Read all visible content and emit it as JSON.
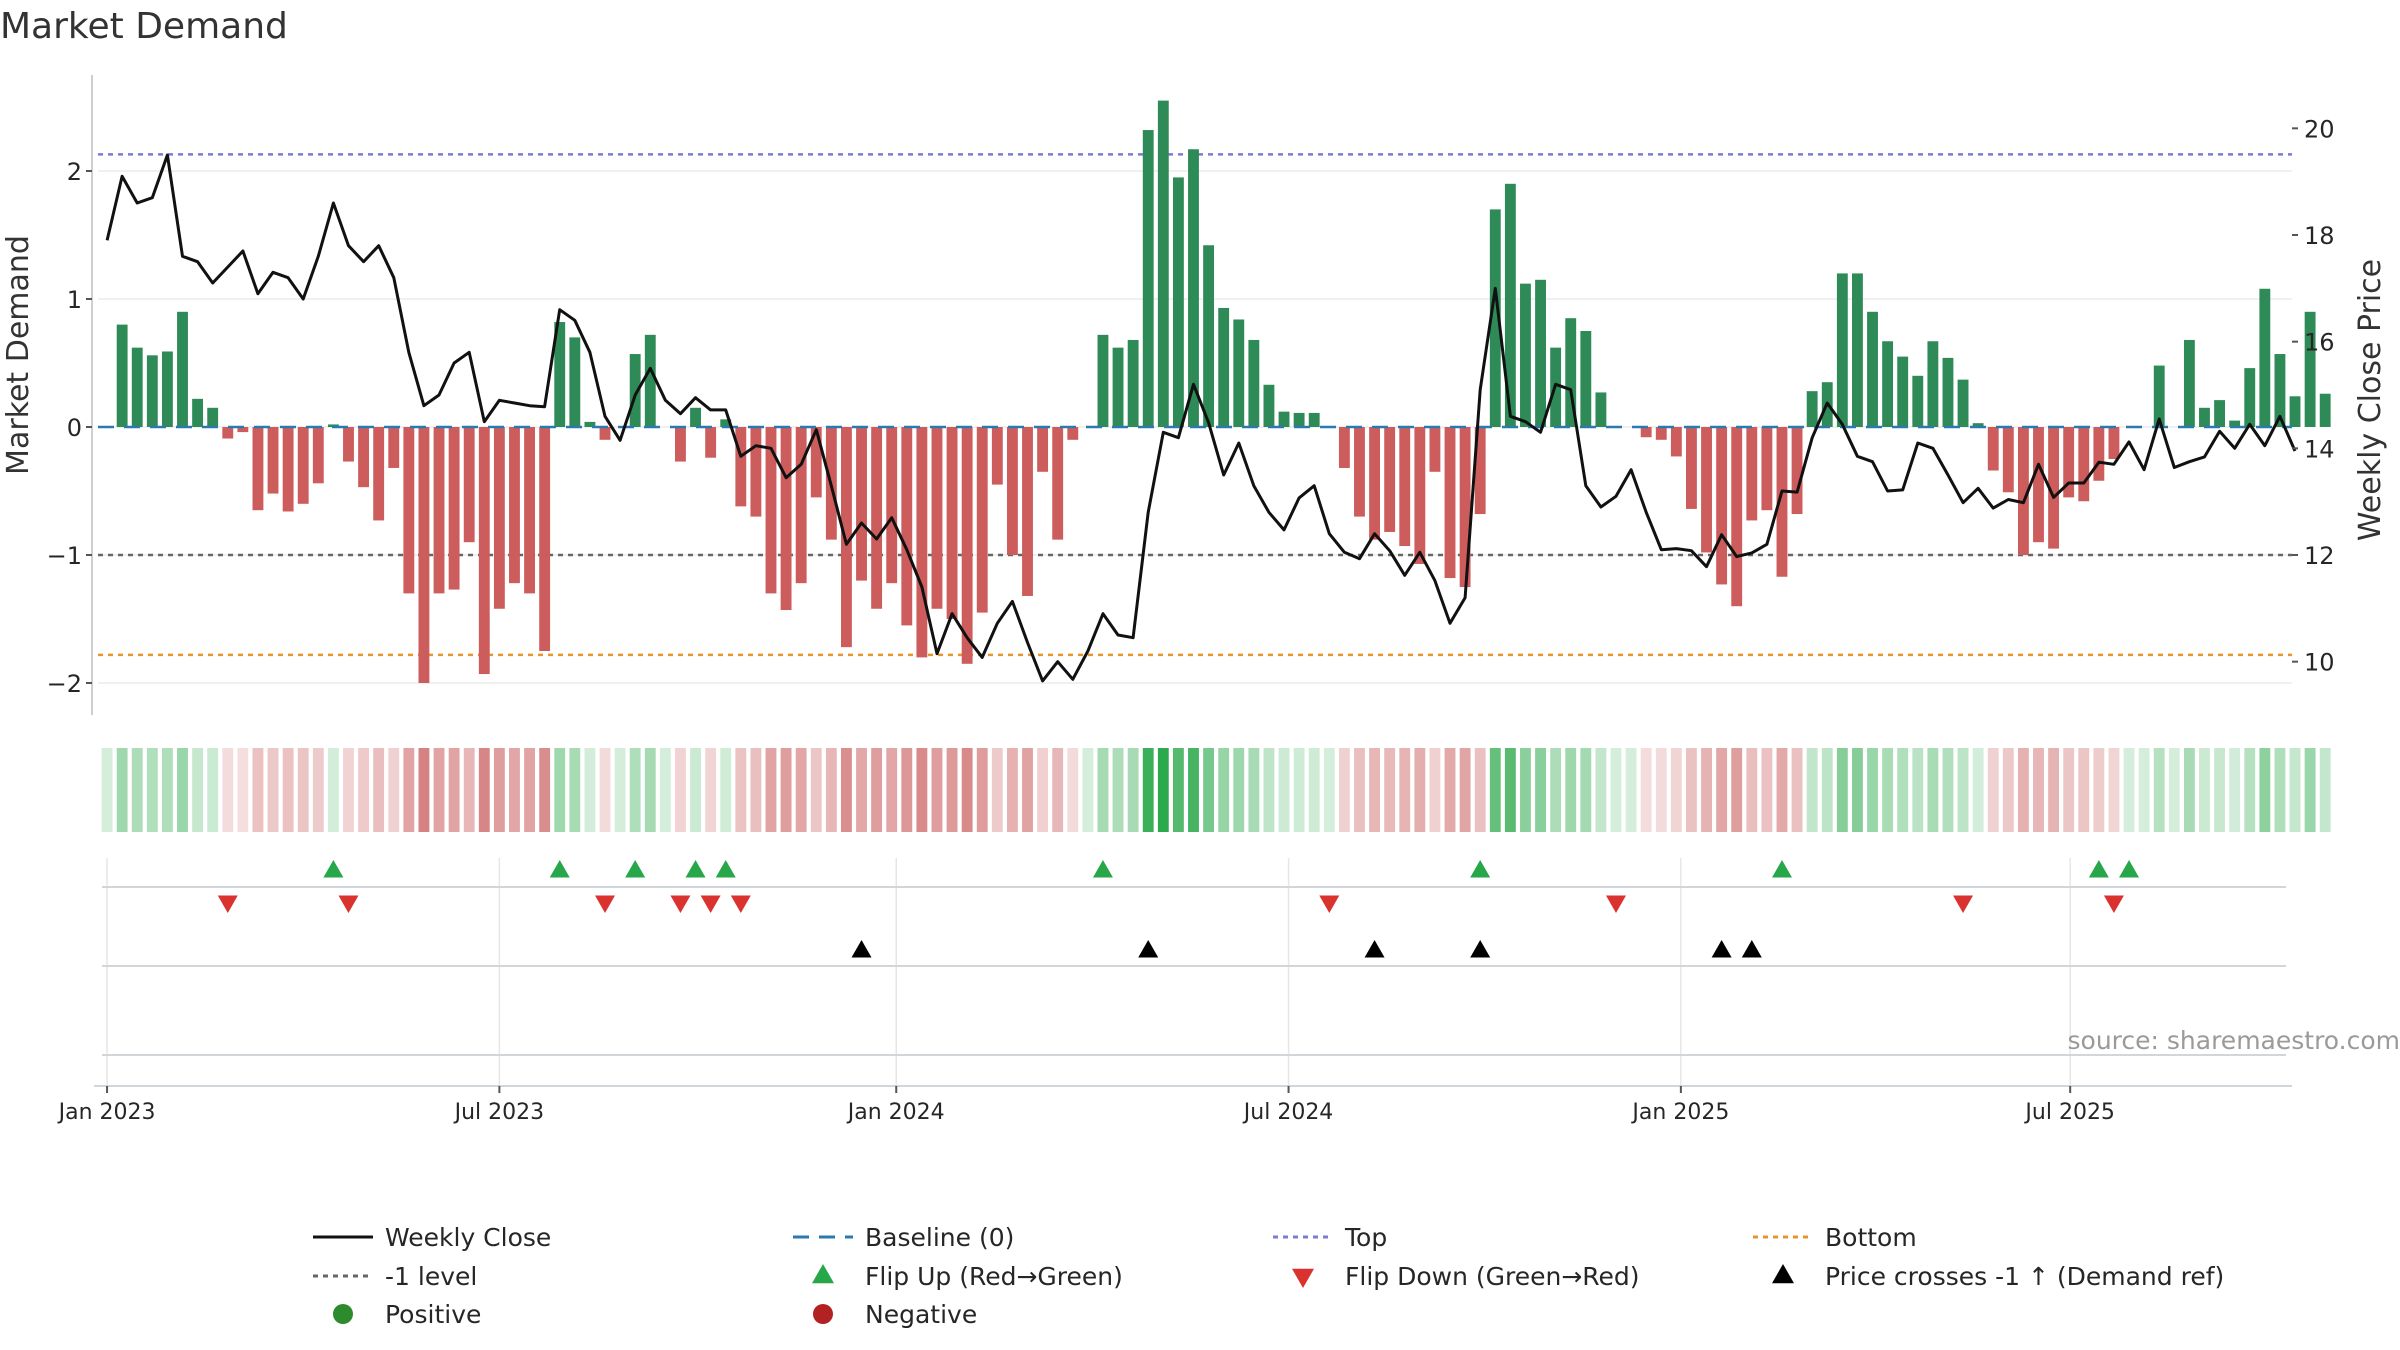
{
  "chart_data": {
    "type": "bar+line",
    "title": "Market Demand",
    "ylabel": "Market Demand",
    "ylabel_right": "Weekly Close Price",
    "ylim": [
      -2.25,
      2.75
    ],
    "ylim_right": [
      9.0,
      21.0
    ],
    "yticks": [
      -2,
      -1,
      0,
      1,
      2
    ],
    "ytick_labels": [
      "−2",
      "−1",
      "0",
      "1",
      "2"
    ],
    "yticks_right": [
      10,
      12,
      14,
      16,
      18,
      20
    ],
    "ytick_right_labels": [
      "10",
      "12",
      "14",
      "16",
      "18",
      "20"
    ],
    "x_start": "2023-01-02",
    "x_range_weeks": [
      -0.6,
      144.8
    ],
    "x_tick_weeks": [
      0,
      26,
      52.3,
      78.3,
      104.3,
      130.1
    ],
    "x_tick_labels": [
      "Jan 2023",
      "Jul 2023",
      "Jan 2024",
      "Jul 2024",
      "Jan 2025",
      "Jul 2025"
    ],
    "demand": [
      0.0,
      0.8,
      0.62,
      0.56,
      0.59,
      0.9,
      0.22,
      0.15,
      -0.09,
      -0.04,
      -0.65,
      -0.52,
      -0.66,
      -0.6,
      -0.44,
      0.02,
      -0.27,
      -0.47,
      -0.73,
      -0.32,
      -1.3,
      -2.0,
      -1.3,
      -1.27,
      -0.9,
      -1.93,
      -1.42,
      -1.22,
      -1.3,
      -1.75,
      0.82,
      0.7,
      0.04,
      -0.1,
      0.0,
      0.57,
      0.72,
      0.0,
      -0.27,
      0.15,
      -0.24,
      0.06,
      -0.62,
      -0.7,
      -1.3,
      -1.43,
      -1.22,
      -0.55,
      -0.88,
      -1.72,
      -1.2,
      -1.42,
      -1.22,
      -1.55,
      -1.8,
      -1.42,
      -1.5,
      -1.85,
      -1.45,
      -0.45,
      -1.0,
      -1.32,
      -0.35,
      -0.88,
      -0.1,
      0.0,
      0.72,
      0.62,
      0.68,
      2.32,
      2.55,
      1.95,
      2.17,
      1.42,
      0.93,
      0.84,
      0.68,
      0.33,
      0.12,
      0.11,
      0.11,
      0.0,
      -0.32,
      -0.7,
      -0.88,
      -0.82,
      -0.93,
      -1.07,
      -0.35,
      -1.18,
      -1.25,
      -0.68,
      1.7,
      1.9,
      1.12,
      1.15,
      0.62,
      0.85,
      0.75,
      0.27,
      0.0,
      0.0,
      -0.08,
      -0.1,
      -0.23,
      -0.64,
      -0.98,
      -1.23,
      -1.4,
      -0.73,
      -0.65,
      -1.17,
      -0.68,
      0.28,
      0.35,
      1.2,
      1.2,
      0.9,
      0.67,
      0.55,
      0.4,
      0.67,
      0.54,
      0.37,
      0.03,
      -0.34,
      -0.51,
      -1.0,
      -0.9,
      -0.95,
      -0.55,
      -0.58,
      -0.42,
      -0.25,
      0.0,
      0.0,
      0.48,
      0.0,
      0.68,
      0.15,
      0.21,
      0.05,
      0.46,
      1.08,
      0.57,
      0.24,
      0.9,
      0.26
    ],
    "close": [
      17.9,
      19.1,
      18.6,
      18.7,
      19.5,
      17.6,
      17.5,
      17.1,
      17.4,
      17.7,
      16.9,
      17.3,
      17.2,
      16.8,
      17.6,
      18.6,
      17.8,
      17.5,
      17.8,
      17.2,
      15.8,
      14.8,
      15.0,
      15.6,
      15.8,
      14.5,
      14.9,
      14.85,
      14.8,
      14.78,
      16.6,
      16.4,
      15.8,
      14.6,
      14.15,
      15.0,
      15.5,
      14.9,
      14.65,
      14.95,
      14.72,
      14.72,
      13.85,
      14.05,
      14.0,
      13.45,
      13.7,
      14.35,
      13.3,
      12.2,
      12.6,
      12.3,
      12.7,
      12.1,
      11.4,
      10.15,
      10.9,
      10.45,
      10.08,
      10.72,
      11.13,
      10.36,
      9.64,
      10.0,
      9.67,
      10.2,
      10.9,
      10.5,
      10.45,
      12.8,
      14.3,
      14.2,
      15.2,
      14.48,
      13.5,
      14.1,
      13.3,
      12.8,
      12.47,
      13.07,
      13.3,
      12.4,
      12.05,
      11.93,
      12.4,
      12.08,
      11.62,
      12.05,
      11.52,
      10.72,
      11.2,
      15.1,
      17.0,
      14.6,
      14.5,
      14.3,
      15.2,
      15.1,
      13.3,
      12.9,
      13.1,
      13.6,
      12.8,
      12.1,
      12.12,
      12.08,
      11.78,
      12.38,
      11.97,
      12.04,
      12.2,
      13.2,
      13.18,
      14.2,
      14.85,
      14.45,
      13.85,
      13.75,
      13.2,
      13.22,
      14.1,
      14.0,
      13.5,
      12.98,
      13.25,
      12.88,
      13.04,
      12.98,
      13.7,
      13.08,
      13.35,
      13.35,
      13.74,
      13.7,
      14.12,
      13.6,
      14.55,
      13.64,
      13.75,
      13.84,
      14.32,
      14.0,
      14.45,
      14.05,
      14.6,
      13.95
    ],
    "top_level": 2.13,
    "bottom_level": -1.78,
    "minus_one_level": -1,
    "flip_up_weeks": [
      15,
      30,
      35,
      39,
      41,
      66,
      91,
      111,
      132,
      134
    ],
    "flip_down_weeks": [
      8,
      16,
      33,
      38,
      40,
      42,
      81,
      100,
      123,
      133
    ],
    "cross_weeks": [
      50,
      69,
      84,
      91,
      107,
      109
    ],
    "series": [
      {
        "name": "Market Demand",
        "kind": "bar",
        "color_positive": "#2e8b57",
        "color_negative": "#cd5c5c"
      },
      {
        "name": "Weekly Close",
        "kind": "line",
        "axis": "right",
        "color": "#111111"
      }
    ],
    "colors": {
      "positive": "#2e8b57",
      "negative": "#cd5c5c",
      "top": "#7b7bd6",
      "bottom": "#e8952d",
      "minus_one": "#666666",
      "baseline": "#2a7ab0",
      "flip_up": "#27a64a",
      "flip_down": "#d9322f",
      "cross": "#000000",
      "legend_positive": "#2d8a2d",
      "legend_negative": "#b22222"
    },
    "legend": {
      "placement": "bottom",
      "items": [
        {
          "label": "Weekly Close",
          "marker": "line-solid"
        },
        {
          "label": "Baseline (0)",
          "marker": "line-dashed"
        },
        {
          "label": "Top",
          "marker": "line-dotted-top"
        },
        {
          "label": "Bottom",
          "marker": "line-dotted-bottom"
        },
        {
          "label": "-1 level",
          "marker": "line-dotted-gray"
        },
        {
          "label": "Flip Up (Red→Green)",
          "marker": "triangle-up-green"
        },
        {
          "label": "Flip Down (Green→Red)",
          "marker": "triangle-down-red"
        },
        {
          "label": "Price crosses -1 ↑ (Demand ref)",
          "marker": "triangle-up-black"
        },
        {
          "label": "Positive",
          "marker": "dot-green"
        },
        {
          "label": "Negative",
          "marker": "dot-red"
        }
      ]
    },
    "source": "source: sharemaestro.com"
  }
}
